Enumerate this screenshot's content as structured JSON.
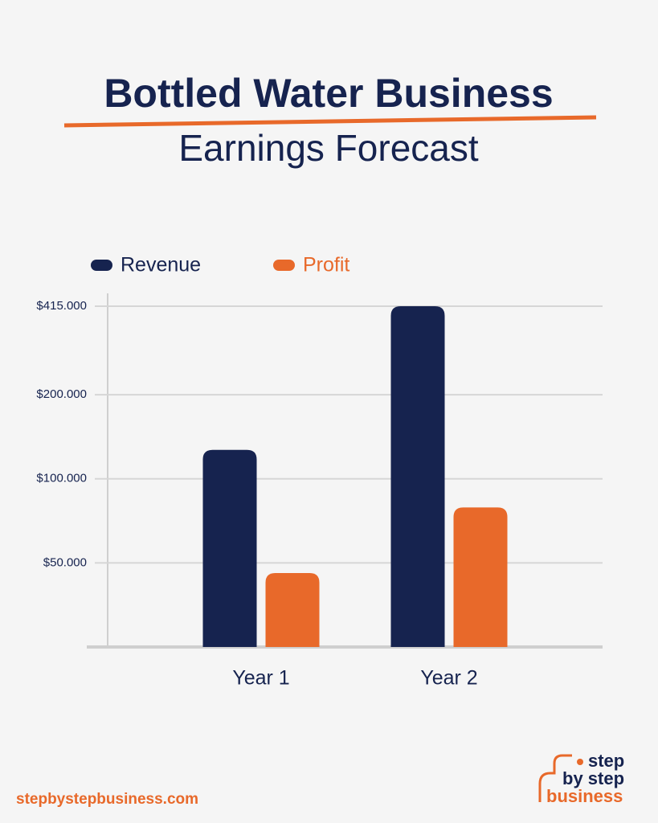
{
  "chart_data": {
    "type": "bar",
    "title": "Bottled Water Business",
    "subtitle": "Earnings Forecast",
    "categories": [
      "Year 1",
      "Year 2"
    ],
    "series": [
      {
        "name": "Revenue",
        "color": "#16234f",
        "values": [
          127000,
          415000
        ]
      },
      {
        "name": "Profit",
        "color": "#e8692a",
        "values": [
          46000,
          79000
        ]
      }
    ],
    "log_scale": true,
    "ylim": [
      25000,
      415000
    ],
    "yticks": [
      {
        "value": 50000,
        "label": "$50.000"
      },
      {
        "value": 100000,
        "label": "$100.000"
      },
      {
        "value": 200000,
        "label": "$200.000"
      },
      {
        "value": 415000,
        "label": "$415.000"
      }
    ],
    "grid": true,
    "legend": "top-left"
  },
  "footer": {
    "website": "stepbystepbusiness.com",
    "logo": [
      "step",
      "by step",
      "business"
    ]
  }
}
